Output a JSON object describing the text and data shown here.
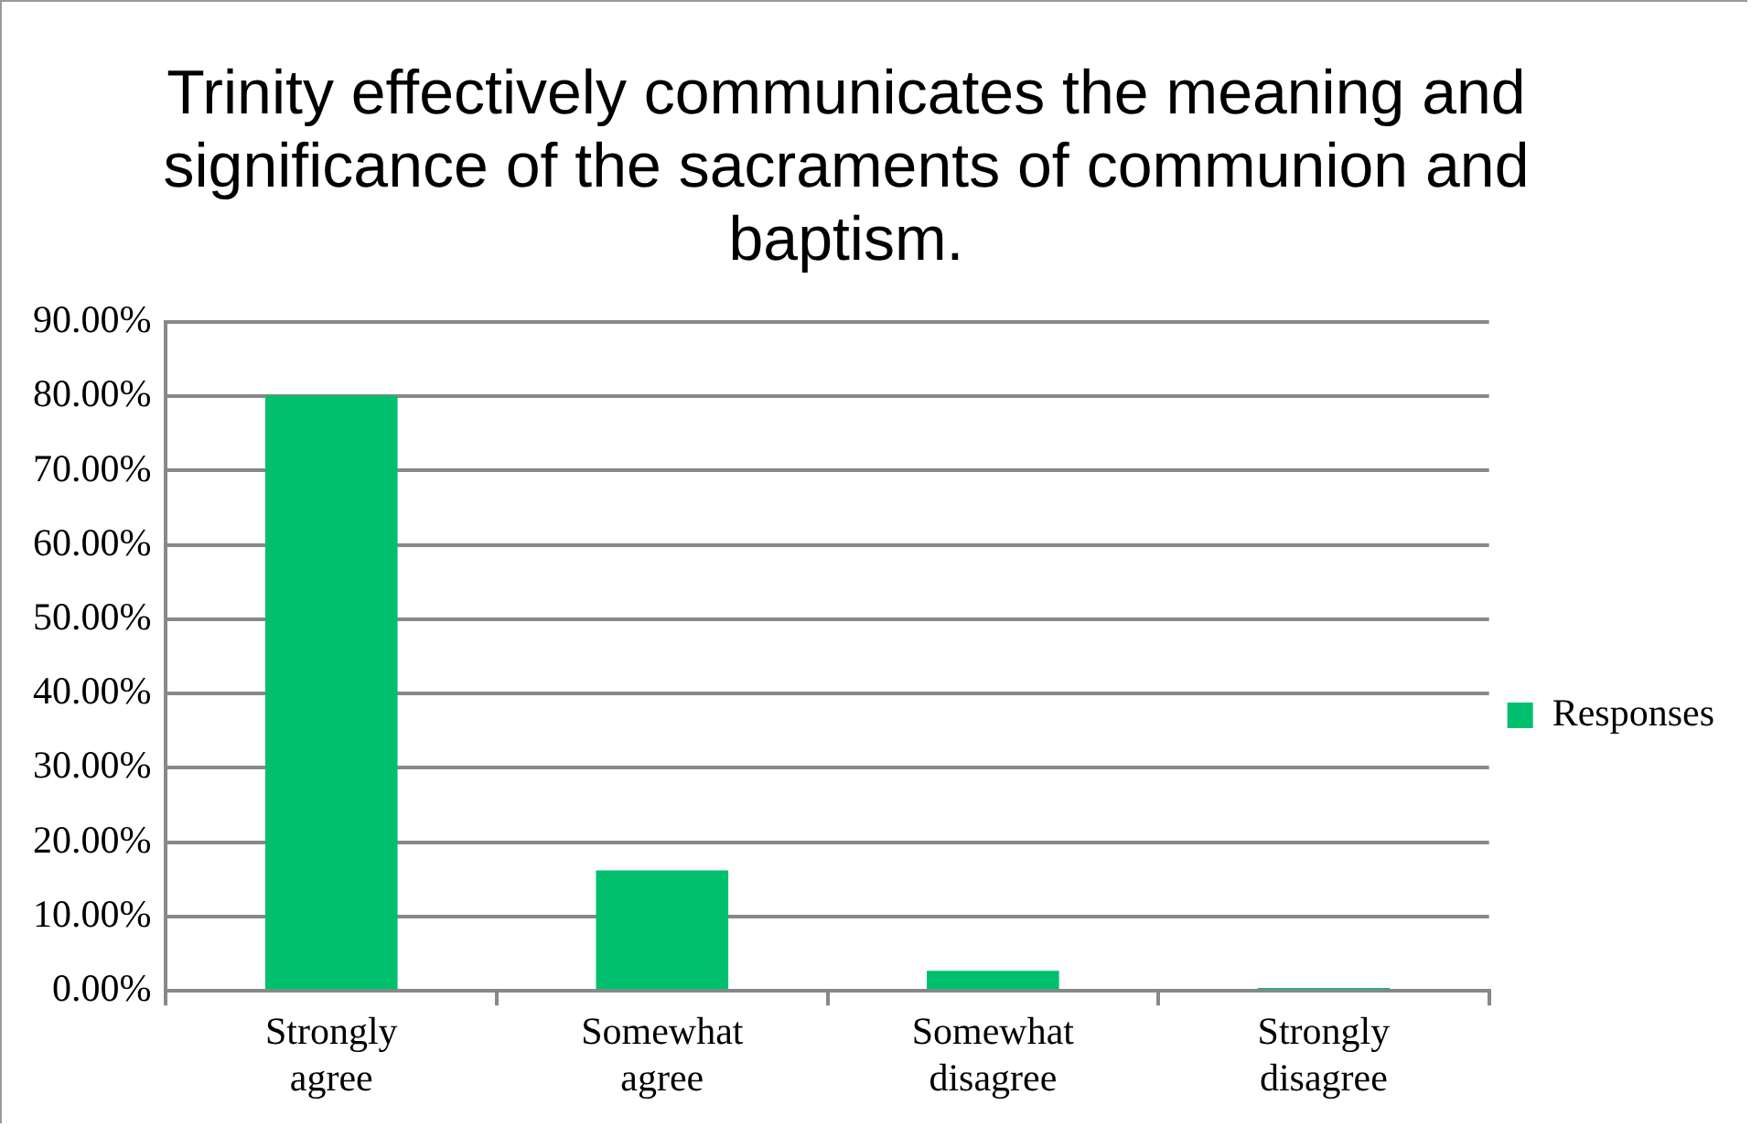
{
  "chart_data": {
    "type": "bar",
    "title": "Trinity effectively communicates the meaning and significance of the sacraments of communion and baptism.",
    "categories": [
      "Strongly agree",
      "Somewhat agree",
      "Somewhat disagree",
      "Strongly disagree"
    ],
    "series": [
      {
        "name": "Responses",
        "color": "#00c06e",
        "values": [
          80.1,
          16.2,
          2.7,
          0.4
        ]
      }
    ],
    "ylim": [
      0,
      90
    ],
    "yticks": [
      {
        "value": 0,
        "label": "0.00%"
      },
      {
        "value": 10,
        "label": "10.00%"
      },
      {
        "value": 20,
        "label": "20.00%"
      },
      {
        "value": 30,
        "label": "30.00%"
      },
      {
        "value": 40,
        "label": "40.00%"
      },
      {
        "value": 50,
        "label": "50.00%"
      },
      {
        "value": 60,
        "label": "60.00%"
      },
      {
        "value": 70,
        "label": "70.00%"
      },
      {
        "value": 80,
        "label": "80.00%"
      },
      {
        "value": 90,
        "label": "90.00%"
      }
    ],
    "grid": "y",
    "legend": "right"
  }
}
